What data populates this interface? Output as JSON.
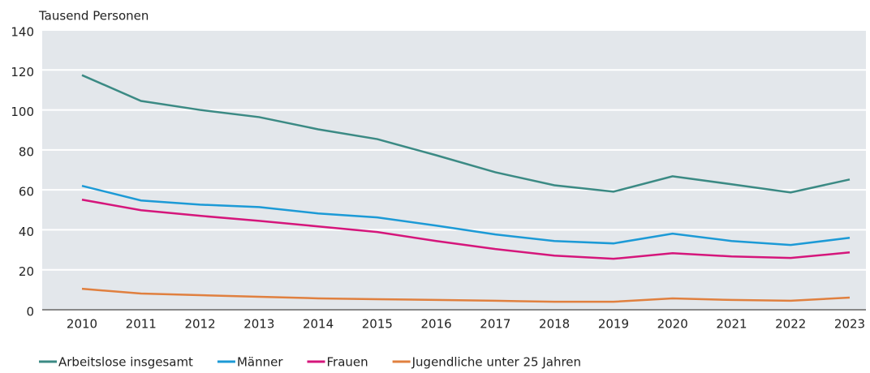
{
  "chart_data": {
    "type": "line",
    "y_label": "Tausend Personen",
    "categories": [
      "2010",
      "2011",
      "2012",
      "2013",
      "2014",
      "2015",
      "2016",
      "2017",
      "2018",
      "2019",
      "2020",
      "2021",
      "2022",
      "2023"
    ],
    "ylim": [
      0,
      140
    ],
    "yticks": [
      0,
      20,
      40,
      60,
      80,
      100,
      120,
      140
    ],
    "grid": true,
    "legend": "bottom",
    "series": [
      {
        "name": "Arbeitslose insgesamt",
        "color": "#3b8a84",
        "values": [
          117.4,
          104.5,
          100,
          96.4,
          90.3,
          85.4,
          77.3,
          68.8,
          62.3,
          59.1,
          66.8,
          62.8,
          58.7,
          65.2
        ]
      },
      {
        "name": "Männer",
        "color": "#1c9ad6",
        "values": [
          62,
          54.7,
          52.6,
          51.4,
          48.2,
          46.2,
          42.1,
          37.7,
          34.4,
          33.2,
          38.1,
          34.4,
          32.4,
          36
        ]
      },
      {
        "name": "Frauen",
        "color": "#d5167b",
        "values": [
          55.1,
          49.8,
          47,
          44.5,
          41.7,
          38.9,
          34.4,
          30.4,
          27.1,
          25.5,
          28.3,
          26.7,
          25.9,
          28.7
        ]
      },
      {
        "name": "Jugendliche unter 25 Jahren",
        "color": "#e0803f",
        "values": [
          10.5,
          8.1,
          7.3,
          6.5,
          5.7,
          5.3,
          4.9,
          4.5,
          4,
          4,
          5.7,
          4.9,
          4.5,
          6.1
        ]
      }
    ]
  }
}
